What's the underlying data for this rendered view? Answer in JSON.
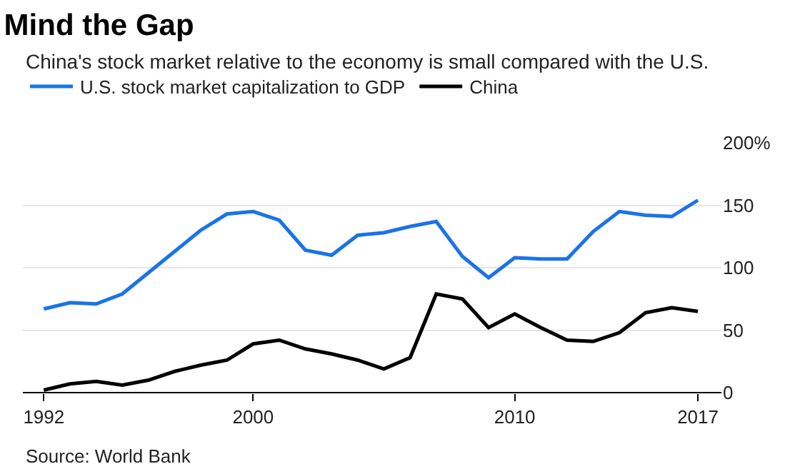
{
  "chart_data": {
    "type": "line",
    "title": "Mind the Gap",
    "subtitle": "China's stock market relative to the economy is small compared with the U.S.",
    "x": [
      1992,
      1993,
      1994,
      1995,
      1996,
      1997,
      1998,
      1999,
      2000,
      2001,
      2002,
      2003,
      2004,
      2005,
      2006,
      2007,
      2008,
      2009,
      2010,
      2011,
      2012,
      2013,
      2014,
      2015,
      2016,
      2017
    ],
    "series": [
      {
        "name": "U.S. stock market capitalization to GDP",
        "color": "#1a73e8",
        "values": [
          67,
          72,
          71,
          79,
          96,
          113,
          130,
          143,
          145,
          138,
          114,
          110,
          126,
          128,
          133,
          137,
          109,
          92,
          108,
          107,
          107,
          129,
          145,
          142,
          141,
          154
        ]
      },
      {
        "name": "China",
        "color": "#000000",
        "values": [
          2,
          7,
          9,
          6,
          10,
          17,
          22,
          26,
          39,
          42,
          35,
          31,
          26,
          19,
          28,
          79,
          75,
          52,
          63,
          52,
          42,
          41,
          48,
          64,
          68,
          65
        ]
      }
    ],
    "xlim": [
      1991.2,
      2017.9
    ],
    "xticks": [
      1992,
      2000,
      2010,
      2017
    ],
    "ylim": [
      0,
      200
    ],
    "yticks": [
      0,
      50,
      100,
      150,
      {
        "value": 200,
        "label": "200%"
      }
    ],
    "grid": "y",
    "legend": "top left",
    "marker": "none",
    "line_style": "solid",
    "annotations": [
      "Source: World Bank"
    ]
  }
}
